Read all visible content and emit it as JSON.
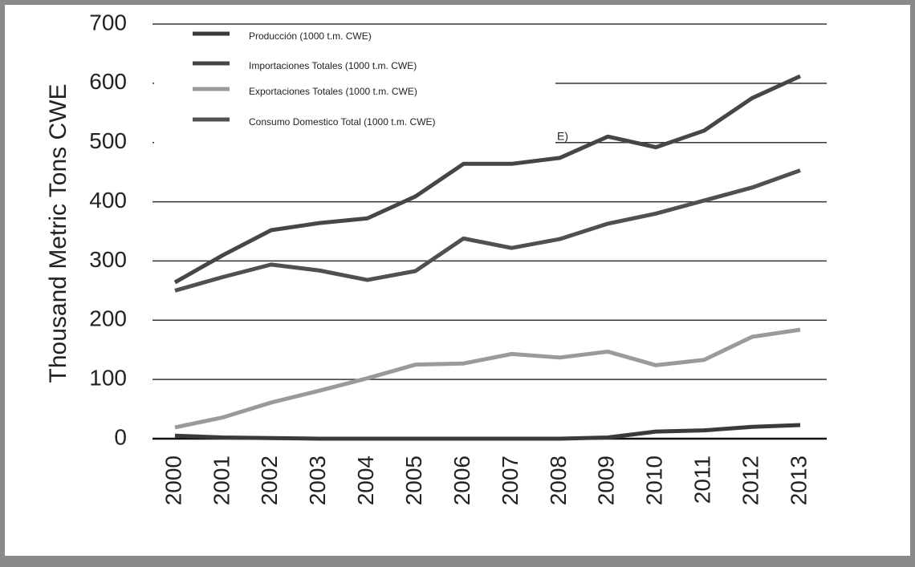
{
  "chart_data": {
    "type": "line",
    "y_label": "Thousand Metric Tons CWE",
    "categories": [
      "2000",
      "2001",
      "2002",
      "2003",
      "2004",
      "2005",
      "2006",
      "2007",
      "2008",
      "2009",
      "2010",
      "2011",
      "2012",
      "2013"
    ],
    "series": [
      {
        "name": "Producción (1000 t.m. CWE)",
        "color": "#3a3a3a",
        "values": [
          5,
          2,
          1,
          0,
          0,
          0,
          0,
          0,
          0,
          2,
          12,
          14,
          20,
          23
        ]
      },
      {
        "name": "Importaciones Totales (1000 t.m. CWE)",
        "color": "#464646",
        "values": [
          264,
          310,
          352,
          364,
          372,
          409,
          464,
          464,
          474,
          510,
          492,
          520,
          575,
          612
        ]
      },
      {
        "name": "Exportaciones Totales (1000 t.m. CWE)",
        "color": "#9a9a9a",
        "values": [
          19,
          36,
          61,
          81,
          102,
          125,
          127,
          143,
          137,
          147,
          124,
          133,
          172,
          184
        ]
      },
      {
        "name": "Consumo Domestico Total (1000 t.m. CWE)",
        "color": "#505050",
        "values": [
          250,
          273,
          294,
          284,
          268,
          283,
          338,
          322,
          337,
          363,
          380,
          402,
          424,
          453
        ]
      }
    ],
    "annotation": "E)",
    "ylim": [
      0,
      700
    ],
    "yticks": [
      0,
      100,
      200,
      300,
      400,
      500,
      600,
      700
    ],
    "grid": true,
    "legend": "upper left"
  }
}
